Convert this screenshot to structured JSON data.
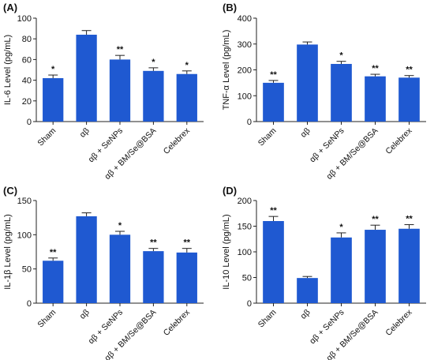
{
  "figure": {
    "bar_color": "#1f59d1",
    "axis_color": "#222222"
  },
  "chart_data": [
    {
      "panel": "(A)",
      "type": "bar",
      "ylabel": "IL-6 Level (pg/mL)",
      "ylim": [
        0,
        100
      ],
      "yticks": [
        0,
        20,
        40,
        60,
        80,
        100
      ],
      "categories": [
        "Sham",
        "αβ",
        "αβ + SeNPs",
        "αβ + BM/Se@BSA",
        "Celebrex"
      ],
      "values": [
        42,
        84,
        60,
        49,
        46
      ],
      "errors": [
        3,
        4,
        4,
        3,
        3
      ],
      "significance": [
        "*",
        "",
        "**",
        "*",
        "*"
      ]
    },
    {
      "panel": "(B)",
      "type": "bar",
      "ylabel": "TNF-α Level (pg/mL)",
      "ylim": [
        0,
        400
      ],
      "yticks": [
        0,
        100,
        200,
        300,
        400
      ],
      "categories": [
        "Sham",
        "αβ",
        "αβ + SeNPs",
        "αβ + BM/Se@BSA",
        "Celebrex"
      ],
      "values": [
        150,
        298,
        223,
        175,
        170
      ],
      "errors": [
        9,
        10,
        10,
        8,
        8
      ],
      "significance": [
        "**",
        "",
        "*",
        "**",
        "**"
      ]
    },
    {
      "panel": "(C)",
      "type": "bar",
      "ylabel": "IL-1β Level (pg/mL)",
      "ylim": [
        0,
        150
      ],
      "yticks": [
        0,
        50,
        100,
        150
      ],
      "categories": [
        "Sham",
        "αβ",
        "αβ + SeNPs",
        "αβ + BM/Se@BSA",
        "Celebrex"
      ],
      "values": [
        62,
        127,
        100,
        76,
        74
      ],
      "errors": [
        4,
        5,
        5,
        4,
        6
      ],
      "significance": [
        "**",
        "",
        "*",
        "**",
        "**"
      ]
    },
    {
      "panel": "(D)",
      "type": "bar",
      "ylabel": "IL-10 Level (pg/mL)",
      "ylim": [
        0,
        200
      ],
      "yticks": [
        0,
        50,
        100,
        150,
        200
      ],
      "categories": [
        "Sham",
        "αβ",
        "αβ + SeNPs",
        "αβ + BM/Se@BSA",
        "Celebrex"
      ],
      "values": [
        160,
        49,
        128,
        143,
        145
      ],
      "errors": [
        9,
        3,
        9,
        9,
        8
      ],
      "significance": [
        "**",
        "",
        "*",
        "**",
        "**"
      ]
    }
  ]
}
